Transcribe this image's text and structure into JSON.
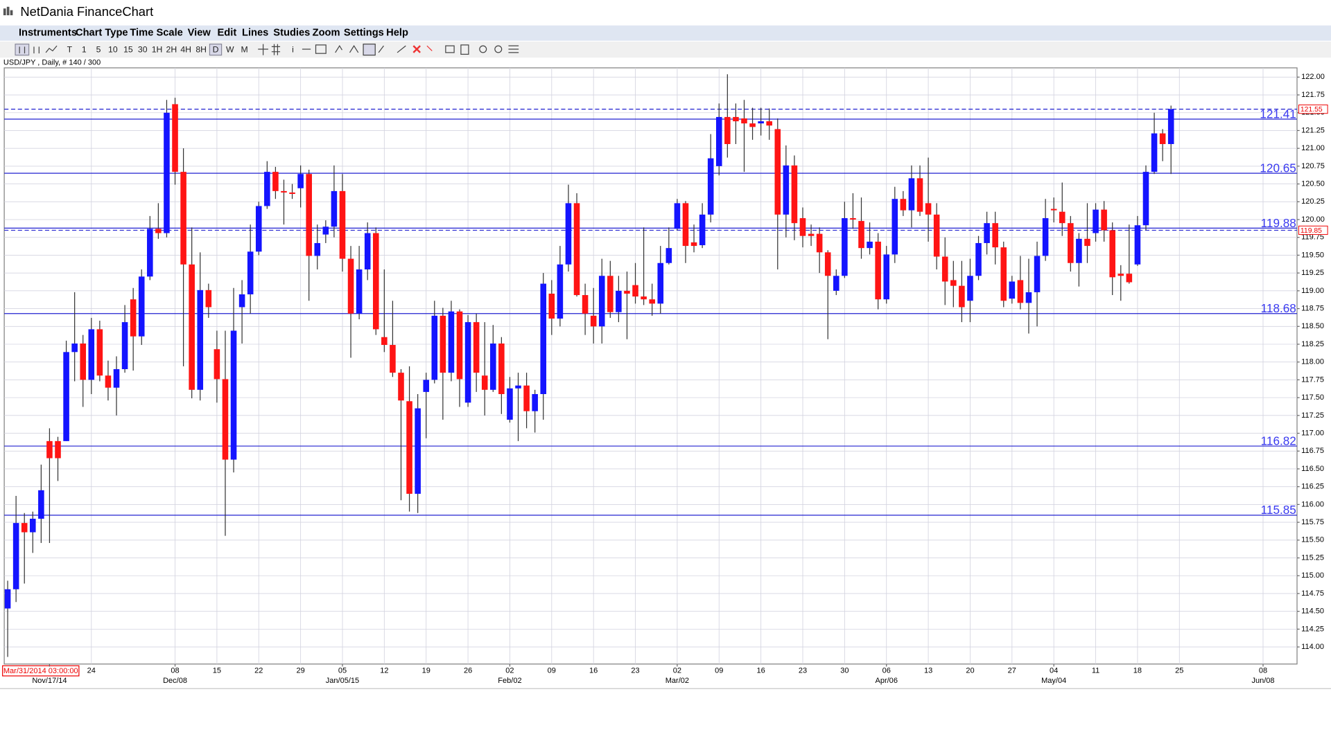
{
  "window": {
    "title": "NetDania FinanceChart"
  },
  "menu": [
    "Instruments",
    "Chart Type",
    "Time Scale",
    "View",
    "Edit",
    "Lines",
    "Studies",
    "Zoom",
    "Settings",
    "Help"
  ],
  "toolbar": [
    "T",
    "1",
    "5",
    "10",
    "15",
    "30",
    "1H",
    "2H",
    "4H",
    "8H",
    "D",
    "W",
    "M",
    "i"
  ],
  "chart_data": {
    "type": "candlestick",
    "title": "USD/JPY , Daily, # 140 / 300",
    "cursor_label": "Mar/31/2014 03:00:00",
    "up_color": "#1414ff",
    "down_color": "#ff1414",
    "grid": true,
    "xlim": [
      -0.41,
      154.06
    ],
    "xticks": [
      {
        "value": 10,
        "label": "24"
      },
      {
        "value": 20,
        "label": "08"
      },
      {
        "value": 25,
        "label": "15"
      },
      {
        "value": 30,
        "label": "22"
      },
      {
        "value": 35,
        "label": "29"
      },
      {
        "value": 40,
        "label": "05"
      },
      {
        "value": 45,
        "label": "12"
      },
      {
        "value": 50,
        "label": "19"
      },
      {
        "value": 55,
        "label": "26"
      },
      {
        "value": 60,
        "label": "02"
      },
      {
        "value": 65,
        "label": "09"
      },
      {
        "value": 70,
        "label": "16"
      },
      {
        "value": 75,
        "label": "23"
      },
      {
        "value": 80,
        "label": "02"
      },
      {
        "value": 85,
        "label": "09"
      },
      {
        "value": 90,
        "label": "16"
      },
      {
        "value": 95,
        "label": "23"
      },
      {
        "value": 100,
        "label": "30"
      },
      {
        "value": 105,
        "label": "06"
      },
      {
        "value": 110,
        "label": "13"
      },
      {
        "value": 115,
        "label": "20"
      },
      {
        "value": 120,
        "label": "27"
      },
      {
        "value": 125,
        "label": "04"
      },
      {
        "value": 130,
        "label": "11"
      },
      {
        "value": 135,
        "label": "18"
      },
      {
        "value": 140,
        "label": "25"
      },
      {
        "value": 150,
        "label": "08"
      }
    ],
    "xticks_major": [
      {
        "value": 5,
        "label": "Nov/17/14"
      },
      {
        "value": 20,
        "label": "Dec/08"
      },
      {
        "value": 40,
        "label": "Jan/05/15"
      },
      {
        "value": 60,
        "label": "Feb/02"
      },
      {
        "value": 80,
        "label": "Mar/02"
      },
      {
        "value": 105,
        "label": "Apr/06"
      },
      {
        "value": 125,
        "label": "May/04"
      },
      {
        "value": 150,
        "label": "Jun/08"
      }
    ],
    "ylim": [
      113.76,
      122.13
    ],
    "yticks": [
      {
        "value": 122,
        "label": "122.00"
      },
      121.75,
      {
        "value": 121.5,
        "label": "121.50"
      },
      121.25,
      {
        "value": 121,
        "label": "121.00"
      },
      120.75,
      {
        "value": 120.5,
        "label": "120.50"
      },
      120.25,
      {
        "value": 120,
        "label": "120.00"
      },
      119.75,
      {
        "value": 119.5,
        "label": "119.50"
      },
      119.25,
      {
        "value": 119,
        "label": "119.00"
      },
      118.75,
      {
        "value": 118.5,
        "label": "118.50"
      },
      118.25,
      {
        "value": 118,
        "label": "118.00"
      },
      117.75,
      {
        "value": 117.5,
        "label": "117.50"
      },
      117.25,
      {
        "value": 117,
        "label": "117.00"
      },
      116.75,
      {
        "value": 116.5,
        "label": "116.50"
      },
      116.25,
      {
        "value": 116,
        "label": "116.00"
      },
      115.75,
      {
        "value": 115.5,
        "label": "115.50"
      },
      115.25,
      {
        "value": 115,
        "label": "115.00"
      },
      114.75,
      {
        "value": 114.5,
        "label": "114.50"
      },
      114.25,
      {
        "value": 114,
        "label": "114.00"
      }
    ],
    "hlines": [
      121.41,
      120.65,
      119.88,
      118.68,
      116.82,
      115.85
    ],
    "price_markers": [
      121.55,
      119.85
    ],
    "open": [
      114.54,
      114.81,
      115.74,
      115.61,
      115.8,
      116.89,
      116.89,
      116.89,
      118.14,
      118.26,
      117.75,
      118.46,
      117.81,
      117.64,
      117.9,
      118.88,
      118.36,
      119.2,
      119.87,
      119.81,
      121.62,
      120.67,
      119.37,
      117.61,
      119.01,
      118.18,
      117.76,
      116.63,
      118.77,
      118.95,
      119.55,
      120.19,
      120.67,
      120.4,
      120.38,
      120.44,
      120.64,
      119.49,
      119.79,
      119.9,
      120.4,
      119.45,
      118.68,
      119.3,
      119.81,
      118.35,
      118.24,
      117.85,
      117.45,
      116.15,
      117.58,
      117.75,
      118.65,
      117.85,
      118.71,
      117.43,
      118.56,
      117.81,
      117.61,
      118.26,
      117.19,
      117.63,
      117.67,
      117.31,
      117.55,
      118.96,
      118.61,
      119.37,
      120.23,
      118.94,
      118.65,
      118.5,
      119.21,
      118.7,
      119.0,
      119.08,
      118.92,
      118.88,
      118.82,
      119.39,
      119.87,
      120.23,
      119.68,
      119.64,
      120.07,
      120.75,
      121.44,
      121.44,
      121.42,
      121.35,
      121.35,
      121.38,
      121.27,
      120.07,
      120.76,
      120.02,
      119.8,
      119.8,
      119.54,
      119.0,
      119.21,
      120.02,
      119.98,
      119.6,
      119.69,
      118.88,
      119.51,
      120.29,
      120.13,
      120.58,
      120.23,
      120.07,
      119.48,
      119.15,
      119.07,
      118.86,
      119.21,
      119.67,
      119.95,
      119.61,
      118.89,
      119.15,
      118.83,
      118.98,
      119.49,
      120.15,
      120.11,
      119.95,
      119.39,
      119.73,
      119.81,
      120.14,
      119.85,
      119.24,
      119.24,
      119.37,
      119.92,
      120.67,
      121.21,
      121.06
    ],
    "high": [
      114.93,
      116.12,
      115.88,
      115.9,
      116.56,
      117.07,
      116.95,
      118.3,
      118.98,
      118.38,
      118.62,
      118.58,
      118.02,
      118.08,
      118.8,
      119.04,
      119.3,
      120.05,
      120.23,
      121.68,
      121.71,
      121.0,
      119.89,
      119.54,
      119.1,
      118.44,
      118.44,
      119.04,
      119.15,
      119.93,
      120.25,
      120.82,
      120.74,
      120.56,
      120.5,
      120.76,
      120.7,
      119.93,
      119.99,
      120.76,
      120.64,
      119.63,
      119.63,
      119.96,
      119.89,
      119.3,
      118.86,
      117.9,
      117.94,
      117.55,
      117.85,
      118.86,
      118.76,
      118.86,
      118.74,
      118.66,
      118.68,
      118.56,
      118.52,
      118.35,
      117.79,
      117.85,
      117.85,
      117.61,
      119.25,
      119.15,
      119.63,
      120.49,
      120.37,
      119.1,
      119.04,
      119.45,
      119.42,
      119.21,
      119.27,
      119.39,
      119.89,
      119.1,
      119.63,
      119.89,
      120.29,
      120.26,
      119.93,
      120.23,
      121.2,
      121.63,
      122.04,
      121.63,
      121.68,
      121.57,
      121.57,
      121.56,
      121.42,
      121.04,
      120.9,
      120.17,
      119.93,
      119.89,
      119.57,
      119.3,
      120.25,
      120.37,
      120.31,
      119.96,
      119.81,
      119.63,
      120.46,
      120.4,
      120.76,
      120.76,
      120.87,
      120.23,
      119.75,
      119.42,
      119.42,
      119.45,
      119.77,
      120.11,
      120.11,
      119.69,
      119.21,
      119.49,
      119.45,
      119.69,
      120.29,
      120.31,
      120.52,
      120.05,
      119.81,
      120.23,
      120.23,
      120.26,
      119.96,
      119.36,
      119.93,
      120.05,
      120.76,
      121.5,
      121.27,
      121.6
    ],
    "low": [
      113.86,
      114.63,
      114.89,
      115.32,
      115.46,
      115.46,
      116.33,
      116.89,
      117.73,
      117.37,
      117.55,
      117.73,
      117.46,
      117.25,
      117.85,
      117.88,
      118.24,
      119.15,
      119.73,
      119.75,
      120.49,
      117.94,
      117.49,
      117.46,
      118.62,
      117.43,
      115.56,
      116.45,
      118.26,
      118.68,
      119.5,
      120.15,
      120.29,
      119.93,
      120.29,
      120.17,
      118.86,
      119.3,
      119.67,
      119.75,
      119.27,
      118.06,
      118.6,
      119.15,
      118.38,
      118.14,
      117.79,
      116.06,
      115.9,
      115.88,
      116.93,
      117.7,
      117.19,
      117.73,
      117.37,
      117.37,
      117.58,
      117.25,
      117.58,
      117.27,
      117.15,
      116.89,
      117.07,
      117.01,
      117.19,
      118.38,
      118.5,
      119.27,
      118.92,
      118.38,
      118.26,
      118.26,
      118.62,
      118.56,
      118.32,
      118.82,
      118.8,
      118.65,
      118.68,
      119.37,
      119.85,
      119.39,
      119.54,
      119.6,
      119.96,
      120.62,
      120.87,
      121.06,
      120.67,
      121.12,
      121.18,
      121.12,
      119.3,
      119.75,
      119.71,
      119.61,
      119.63,
      119.25,
      118.32,
      118.94,
      119.18,
      119.87,
      119.45,
      119.51,
      118.74,
      118.82,
      119.39,
      120.05,
      119.89,
      120.05,
      119.69,
      119.3,
      118.8,
      118.77,
      118.56,
      118.56,
      119.15,
      119.51,
      119.37,
      118.77,
      118.82,
      118.74,
      118.4,
      118.5,
      119.42,
      119.96,
      119.77,
      119.27,
      119.06,
      119.39,
      119.69,
      119.69,
      118.94,
      118.86,
      119.1,
      119.35,
      119.85,
      120.64,
      120.82,
      120.64
    ],
    "close": [
      114.81,
      115.74,
      115.61,
      115.8,
      116.2,
      116.65,
      116.65,
      118.14,
      118.26,
      117.75,
      118.46,
      117.81,
      117.64,
      117.9,
      118.56,
      118.36,
      119.2,
      119.87,
      119.81,
      121.5,
      120.67,
      119.37,
      117.61,
      119.01,
      118.77,
      117.76,
      116.63,
      118.44,
      118.95,
      119.55,
      120.19,
      120.67,
      120.4,
      120.38,
      120.36,
      120.64,
      119.49,
      119.67,
      119.9,
      120.4,
      119.45,
      118.68,
      119.3,
      119.81,
      118.46,
      118.24,
      117.85,
      117.46,
      116.15,
      117.35,
      117.75,
      118.65,
      117.85,
      118.71,
      117.76,
      118.56,
      117.85,
      117.61,
      118.26,
      117.55,
      117.63,
      117.67,
      117.31,
      117.55,
      119.1,
      118.61,
      119.37,
      120.23,
      118.94,
      118.68,
      118.5,
      119.21,
      118.7,
      119.0,
      118.96,
      118.92,
      118.88,
      118.82,
      119.39,
      119.6,
      120.23,
      119.63,
      119.63,
      120.07,
      120.86,
      121.44,
      121.06,
      121.38,
      121.35,
      121.3,
      121.38,
      121.32,
      120.07,
      120.76,
      119.95,
      119.77,
      119.77,
      119.54,
      119.21,
      119.21,
      120.02,
      120.0,
      119.6,
      119.69,
      118.88,
      119.51,
      120.29,
      120.13,
      120.58,
      120.11,
      120.07,
      119.48,
      119.13,
      119.07,
      118.77,
      119.21,
      119.67,
      119.95,
      119.61,
      118.86,
      119.13,
      118.83,
      118.98,
      119.49,
      120.02,
      120.13,
      119.95,
      119.39,
      119.73,
      119.63,
      120.14,
      119.85,
      119.19,
      119.21,
      119.12,
      119.92,
      120.67,
      121.21,
      121.06,
      121.55
    ]
  }
}
